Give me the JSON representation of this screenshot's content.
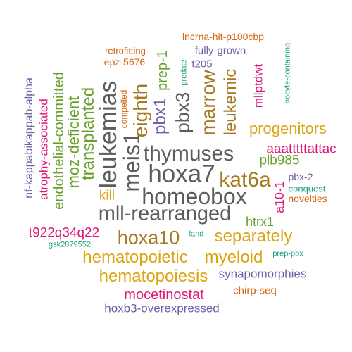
{
  "colors": {
    "gray": "#5c5c5c",
    "purple": "#7060aa",
    "gold": "#dba413",
    "orange": "#d6620e",
    "magenta": "#e0177a",
    "green": "#68a12a",
    "teal": "#20a080",
    "olive": "#a57a22"
  },
  "words": [
    {
      "text": "hoxa7",
      "color": "#5c5c5c",
      "weight": 17
    },
    {
      "text": "homeobox",
      "color": "#5c5c5c",
      "weight": 17
    },
    {
      "text": "mll-rearranged",
      "color": "#5c5c5c",
      "weight": 17
    },
    {
      "text": "leukemias",
      "color": "#5c5c5c",
      "weight": 16
    },
    {
      "text": "meis1",
      "color": "#5c5c5c",
      "weight": 16
    },
    {
      "text": "thymuses",
      "color": "#5c5c5c",
      "weight": 15
    },
    {
      "text": "kat6a",
      "color": "#a57a22",
      "weight": 15
    },
    {
      "text": "hoxa10",
      "color": "#a57a22",
      "weight": 14
    },
    {
      "text": "marrow",
      "color": "#a57a22",
      "weight": 13
    },
    {
      "text": "eighth",
      "color": "#a57a22",
      "weight": 13
    },
    {
      "text": "pbx3",
      "color": "#5c5c5c",
      "weight": 13
    },
    {
      "text": "pbx1",
      "color": "#7060aa",
      "weight": 12
    },
    {
      "text": "leukemic",
      "color": "#a57a22",
      "weight": 12
    },
    {
      "text": "hematopoietic",
      "color": "#dba413",
      "weight": 12
    },
    {
      "text": "myeloid",
      "color": "#dba413",
      "weight": 12
    },
    {
      "text": "separately",
      "color": "#dba413",
      "weight": 11
    },
    {
      "text": "hematopoiesis",
      "color": "#dba413",
      "weight": 11
    },
    {
      "text": "progenitors",
      "color": "#dba413",
      "weight": 11
    },
    {
      "text": "transplanted",
      "color": "#68a12a",
      "weight": 10
    },
    {
      "text": "moz-deficient",
      "color": "#68a12a",
      "weight": 10
    },
    {
      "text": "endothelial-committed",
      "color": "#68a12a",
      "weight": 10
    },
    {
      "text": "mocetinostat",
      "color": "#e0177a",
      "weight": 9
    },
    {
      "text": "prep-1",
      "color": "#68a12a",
      "weight": 9
    },
    {
      "text": "aaatttttattac",
      "color": "#e0177a",
      "weight": 8
    },
    {
      "text": "plb985",
      "color": "#68a12a",
      "weight": 8
    },
    {
      "text": "t922q34q22",
      "color": "#e0177a",
      "weight": 8
    },
    {
      "text": "a10-1",
      "color": "#e0177a",
      "weight": 8
    },
    {
      "text": "htrx1",
      "color": "#68a12a",
      "weight": 8
    },
    {
      "text": "atrophy-associated",
      "color": "#e0177a",
      "weight": 8
    },
    {
      "text": "kill",
      "color": "#dba413",
      "weight": 8
    },
    {
      "text": "synapomorphies",
      "color": "#7060aa",
      "weight": 7
    },
    {
      "text": "hoxb3-overexpressed",
      "color": "#7060aa",
      "weight": 7
    },
    {
      "text": "nf-kappabikappab-alpha",
      "color": "#7060aa",
      "weight": 7
    },
    {
      "text": "mllptdwt",
      "color": "#e0177a",
      "weight": 7
    },
    {
      "text": "fully-grown",
      "color": "#7060aa",
      "weight": 6
    },
    {
      "text": "t205",
      "color": "#7060aa",
      "weight": 6
    },
    {
      "text": "chirp-seq",
      "color": "#d6620e",
      "weight": 6
    },
    {
      "text": "lncrna-hit-p100cbp",
      "color": "#d6620e",
      "weight": 6
    },
    {
      "text": "epz-5676",
      "color": "#d6620e",
      "weight": 6
    },
    {
      "text": "pbx-2",
      "color": "#7060aa",
      "weight": 6
    },
    {
      "text": "novelties",
      "color": "#d6620e",
      "weight": 6
    },
    {
      "text": "retrofitting",
      "color": "#d6620e",
      "weight": 5
    },
    {
      "text": "compelled",
      "color": "#d6620e",
      "weight": 5
    },
    {
      "text": "conquest",
      "color": "#20a080",
      "weight": 5
    },
    {
      "text": "predate",
      "color": "#20a080",
      "weight": 4
    },
    {
      "text": "oocyte-containing",
      "color": "#20a080",
      "weight": 4
    },
    {
      "text": "gsk2879552",
      "color": "#20a080",
      "weight": 4
    },
    {
      "text": "land",
      "color": "#20a080",
      "weight": 4
    },
    {
      "text": "prep-pbx",
      "color": "#20a080",
      "weight": 4
    }
  ]
}
